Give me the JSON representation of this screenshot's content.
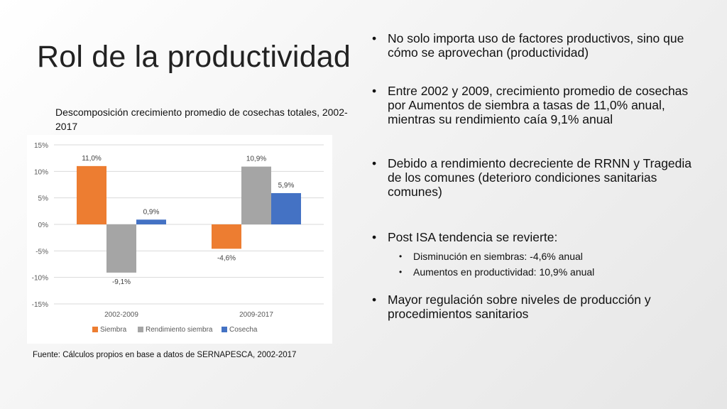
{
  "slide": {
    "title": "Rol de la productividad",
    "chart_caption": "Descomposición crecimiento promedio de cosechas totales, 2002-2017",
    "source": "Fuente: Cálculos propios en base a datos de SERNAPESCA, 2002-2017"
  },
  "bullets": [
    {
      "text": "No solo importa uso de factores productivos, sino que cómo se aprovechan (productividad)"
    },
    {
      "text": "Entre 2002 y 2009, crecimiento promedio de cosechas por Aumentos de siembra a tasas de 11,0% anual, mientras su rendimiento caía 9,1% anual"
    },
    {
      "text": "Debido a rendimiento decreciente de RRNN y Tragedia de los comunes (deterioro condiciones sanitarias comunes)"
    },
    {
      "text": "Post ISA tendencia se revierte:",
      "sub": [
        "Disminución en siembras: -4,6% anual",
        "Aumentos en productividad: 10,9% anual"
      ]
    },
    {
      "text": "Mayor regulación sobre niveles de producción y procedimientos sanitarios"
    }
  ],
  "chart_data": {
    "type": "bar",
    "categories": [
      "2002-2009",
      "2009-2017"
    ],
    "series": [
      {
        "name": "Siembra",
        "values": [
          11.0,
          -4.6
        ],
        "labels": [
          "11,0%",
          "-4,6%"
        ],
        "color": "#ED7D31"
      },
      {
        "name": "Rendimiento siembra",
        "values": [
          -9.1,
          10.9
        ],
        "labels": [
          "-9,1%",
          "10,9%"
        ],
        "color": "#A5A5A5"
      },
      {
        "name": "Cosecha",
        "values": [
          0.9,
          5.9
        ],
        "labels": [
          "0,9%",
          "5,9%"
        ],
        "color": "#4472C4"
      }
    ],
    "ylim": [
      -15,
      15
    ],
    "yticks": [
      15,
      10,
      5,
      0,
      -5,
      -10,
      -15
    ],
    "ytick_labels": [
      "15%",
      "10%",
      "5%",
      "0%",
      "-5%",
      "-10%",
      "-15%"
    ],
    "grid": true,
    "legend": "bottom"
  }
}
